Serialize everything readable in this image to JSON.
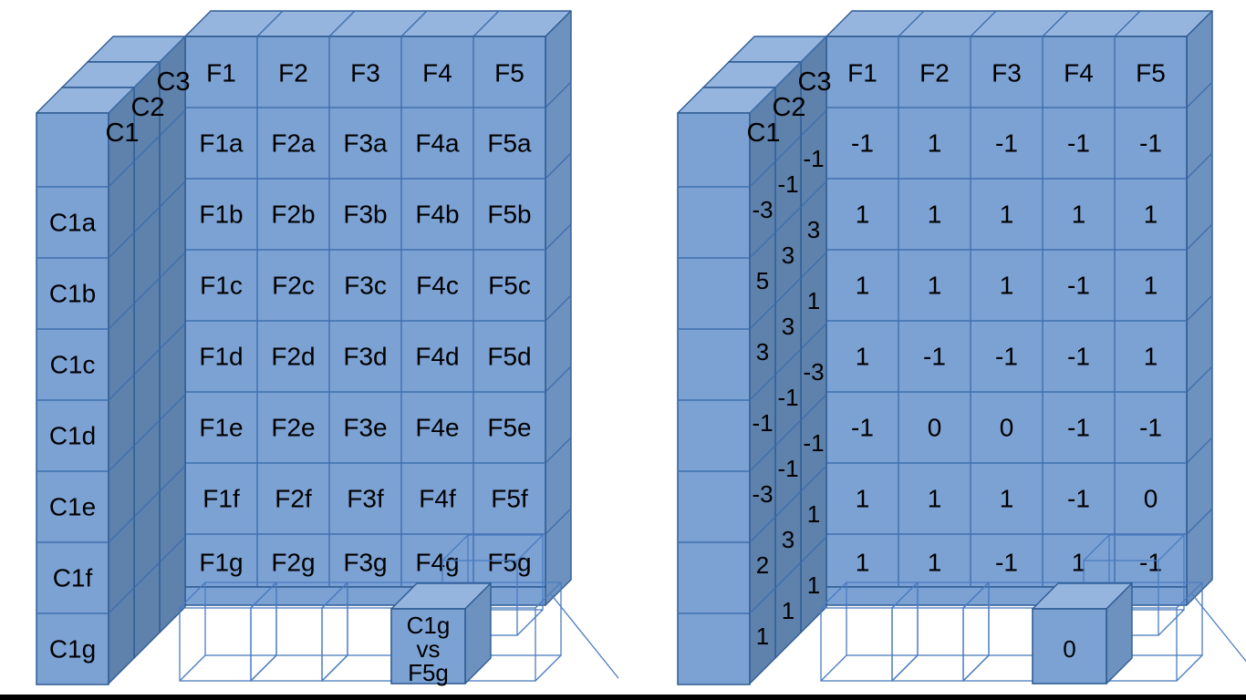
{
  "palette": {
    "front": "#7ca2d4",
    "top": "#96b5de",
    "side": "#6e92bf",
    "strip": "#5e82ac",
    "stroke": "#3f6fad",
    "outline": "#2f5c93",
    "wire": "#4a7cc0",
    "text": "#000000",
    "background": "#ffffff",
    "bottom_bar": "#000000"
  },
  "left_diagram": {
    "layer_labels": [
      "C1",
      "C2",
      "C3"
    ],
    "column_headers": [
      "F1",
      "F2",
      "F3",
      "F4",
      "F5"
    ],
    "side_labels": [
      "C1a",
      "C1b",
      "C1c",
      "C1d",
      "C1e",
      "C1f",
      "C1g"
    ],
    "grid_rows": [
      [
        "F1a",
        "F2a",
        "F3a",
        "F4a",
        "F5a"
      ],
      [
        "F1b",
        "F2b",
        "F3b",
        "F4b",
        "F5b"
      ],
      [
        "F1c",
        "F2c",
        "F3c",
        "F4c",
        "F5c"
      ],
      [
        "F1d",
        "F2d",
        "F3d",
        "F4d",
        "F5d"
      ],
      [
        "F1e",
        "F2e",
        "F3e",
        "F4e",
        "F5e"
      ],
      [
        "F1f",
        "F2f",
        "F3f",
        "F4f",
        "F5f"
      ],
      [
        "F1g",
        "F2g",
        "F3g",
        "F4g",
        "F5g"
      ]
    ],
    "pulled_cube_lines": [
      "C1g",
      "vs",
      "F5g"
    ]
  },
  "right_diagram": {
    "layer_labels": [
      "C1",
      "C2",
      "C3"
    ],
    "column_headers": [
      "F1",
      "F2",
      "F3",
      "F4",
      "F5"
    ],
    "strip_values": [
      [
        "-3",
        "5",
        "3",
        "-1",
        "-3",
        "2",
        "1"
      ],
      [
        "-1",
        "3",
        "3",
        "-1",
        "-1",
        "3",
        "1"
      ],
      [
        "-1",
        "3",
        "1",
        "-3",
        "-1",
        "1",
        "1"
      ]
    ],
    "grid_rows": [
      [
        "-1",
        "1",
        "-1",
        "-1",
        "-1"
      ],
      [
        "1",
        "1",
        "1",
        "1",
        "1"
      ],
      [
        "1",
        "1",
        "1",
        "-1",
        "1"
      ],
      [
        "1",
        "-1",
        "-1",
        "-1",
        "1"
      ],
      [
        "-1",
        "0",
        "0",
        "-1",
        "-1"
      ],
      [
        "1",
        "1",
        "1",
        "-1",
        "0"
      ],
      [
        "1",
        "1",
        "-1",
        "1",
        "-1"
      ]
    ],
    "pulled_cube_lines": [
      "0"
    ]
  }
}
